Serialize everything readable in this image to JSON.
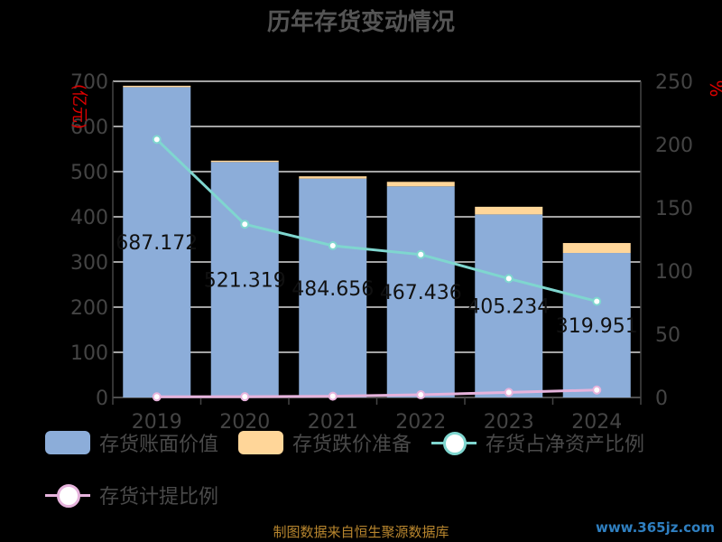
{
  "chart_data": {
    "type": "bar",
    "title": "历年存货变动情况",
    "categories": [
      "2019",
      "2020",
      "2021",
      "2022",
      "2023",
      "2024"
    ],
    "y_left": {
      "label": "(亿元)",
      "range": [
        0,
        700
      ],
      "ticks": [
        "0",
        "100",
        "200",
        "300",
        "400",
        "500",
        "600",
        "700"
      ]
    },
    "y_right": {
      "label": "%",
      "range": [
        0,
        250
      ],
      "ticks": [
        "0",
        "50",
        "100",
        "150",
        "200",
        "250"
      ]
    },
    "series": [
      {
        "name": "存货账面价值",
        "kind": "bar",
        "stack": "a",
        "color": "#8cadd9",
        "values": [
          687.172,
          521.319,
          484.656,
          467.436,
          405.234,
          319.951
        ],
        "labels": [
          "687.172",
          "521.319",
          "484.656",
          "467.436",
          "405.234",
          "319.951"
        ]
      },
      {
        "name": "存货跌价准备",
        "kind": "bar",
        "stack": "a",
        "color": "#ffd699",
        "values": [
          3,
          3,
          5,
          10,
          17,
          22
        ]
      },
      {
        "name": "存货占净资产比例",
        "kind": "line",
        "axis": "right",
        "color": "#7fd6cf",
        "values": [
          204,
          137,
          120,
          113,
          94,
          76
        ]
      },
      {
        "name": "存货计提比例",
        "kind": "line",
        "axis": "right",
        "color": "#e6b3dc",
        "values": [
          0.5,
          0.6,
          1.0,
          2.1,
          4.0,
          5.9
        ]
      }
    ],
    "grid": true,
    "legend_position": "bottom"
  },
  "footer": "制图数据来自恒生聚源数据库",
  "watermark": "www.365jz.com"
}
